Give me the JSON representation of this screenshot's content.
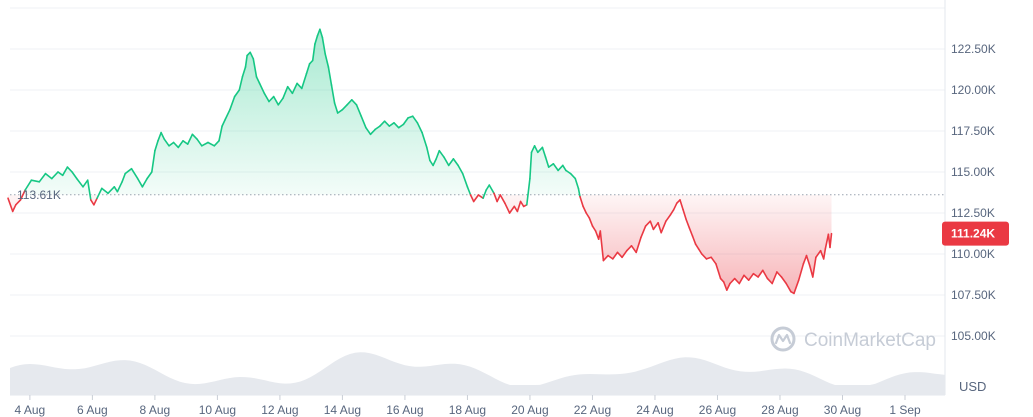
{
  "chart_data": {
    "type": "area",
    "currency": "USD",
    "watermark": "CoinMarketCap",
    "baseline": {
      "value": 113.61,
      "label": "113.61K"
    },
    "current": {
      "value": 111.24,
      "label": "111.24K"
    },
    "colors": {
      "up": "#16c784",
      "down": "#ea3943",
      "grid": "#eff2f5",
      "volume": "#e6e9ee",
      "axis_text": "#58667e"
    },
    "ylim": [
      103.0,
      125.5
    ],
    "y_ticks": [
      {
        "value": 122.5,
        "label": "122.50K"
      },
      {
        "value": 120.0,
        "label": "120.00K"
      },
      {
        "value": 117.5,
        "label": "117.50K"
      },
      {
        "value": 115.0,
        "label": "115.00K"
      },
      {
        "value": 112.5,
        "label": "112.50K"
      },
      {
        "value": 110.0,
        "label": "110.00K"
      },
      {
        "value": 107.5,
        "label": "107.50K"
      },
      {
        "value": 105.0,
        "label": "105.00K"
      }
    ],
    "xlim": [
      3.3,
      33.6
    ],
    "x_ticks": [
      {
        "value": 4,
        "label": "4 Aug"
      },
      {
        "value": 6,
        "label": "6 Aug"
      },
      {
        "value": 8,
        "label": "8 Aug"
      },
      {
        "value": 10,
        "label": "10 Aug"
      },
      {
        "value": 12,
        "label": "12 Aug"
      },
      {
        "value": 14,
        "label": "14 Aug"
      },
      {
        "value": 16,
        "label": "16 Aug"
      },
      {
        "value": 18,
        "label": "18 Aug"
      },
      {
        "value": 20,
        "label": "20 Aug"
      },
      {
        "value": 22,
        "label": "22 Aug"
      },
      {
        "value": 24,
        "label": "24 Aug"
      },
      {
        "value": 26,
        "label": "26 Aug"
      },
      {
        "value": 28,
        "label": "28 Aug"
      },
      {
        "value": 30,
        "label": "30 Aug"
      },
      {
        "value": 32,
        "label": "1 Sep"
      }
    ],
    "series": [
      {
        "values": [
          [
            3.3,
            113.4
          ],
          [
            3.45,
            112.6
          ],
          [
            3.55,
            113.0
          ],
          [
            3.7,
            113.3
          ],
          [
            3.85,
            113.9
          ],
          [
            4.05,
            114.5
          ],
          [
            4.3,
            114.4
          ],
          [
            4.5,
            114.9
          ],
          [
            4.7,
            114.6
          ],
          [
            4.9,
            115.0
          ],
          [
            5.05,
            114.8
          ],
          [
            5.2,
            115.3
          ],
          [
            5.35,
            115.0
          ],
          [
            5.5,
            114.6
          ],
          [
            5.7,
            114.1
          ],
          [
            5.85,
            114.5
          ],
          [
            5.95,
            113.3
          ],
          [
            6.05,
            113.0
          ],
          [
            6.15,
            113.4
          ],
          [
            6.3,
            114.0
          ],
          [
            6.5,
            113.7
          ],
          [
            6.7,
            114.1
          ],
          [
            6.8,
            113.8
          ],
          [
            6.95,
            114.4
          ],
          [
            7.05,
            114.9
          ],
          [
            7.25,
            115.2
          ],
          [
            7.45,
            114.6
          ],
          [
            7.6,
            114.1
          ],
          [
            7.75,
            114.6
          ],
          [
            7.9,
            115.0
          ],
          [
            8.0,
            116.3
          ],
          [
            8.1,
            116.9
          ],
          [
            8.2,
            117.4
          ],
          [
            8.3,
            117.0
          ],
          [
            8.45,
            116.6
          ],
          [
            8.6,
            116.8
          ],
          [
            8.75,
            116.5
          ],
          [
            8.9,
            116.9
          ],
          [
            9.05,
            116.7
          ],
          [
            9.2,
            117.3
          ],
          [
            9.35,
            117.0
          ],
          [
            9.5,
            116.6
          ],
          [
            9.7,
            116.8
          ],
          [
            9.9,
            116.6
          ],
          [
            10.05,
            116.9
          ],
          [
            10.15,
            117.8
          ],
          [
            10.25,
            118.2
          ],
          [
            10.4,
            118.8
          ],
          [
            10.55,
            119.6
          ],
          [
            10.7,
            120.0
          ],
          [
            10.8,
            120.8
          ],
          [
            10.9,
            121.4
          ],
          [
            10.95,
            122.1
          ],
          [
            11.05,
            122.3
          ],
          [
            11.15,
            121.9
          ],
          [
            11.25,
            120.8
          ],
          [
            11.35,
            120.4
          ],
          [
            11.5,
            119.8
          ],
          [
            11.65,
            119.3
          ],
          [
            11.8,
            119.6
          ],
          [
            11.95,
            119.1
          ],
          [
            12.1,
            119.5
          ],
          [
            12.25,
            120.2
          ],
          [
            12.4,
            119.8
          ],
          [
            12.55,
            120.4
          ],
          [
            12.7,
            120.1
          ],
          [
            12.85,
            121.0
          ],
          [
            12.95,
            121.6
          ],
          [
            13.05,
            121.8
          ],
          [
            13.12,
            122.8
          ],
          [
            13.2,
            123.3
          ],
          [
            13.28,
            123.7
          ],
          [
            13.36,
            123.2
          ],
          [
            13.45,
            122.2
          ],
          [
            13.55,
            121.4
          ],
          [
            13.65,
            120.3
          ],
          [
            13.75,
            119.2
          ],
          [
            13.85,
            118.6
          ],
          [
            14.0,
            118.8
          ],
          [
            14.15,
            119.1
          ],
          [
            14.3,
            119.4
          ],
          [
            14.45,
            119.1
          ],
          [
            14.6,
            118.4
          ],
          [
            14.75,
            117.7
          ],
          [
            14.9,
            117.3
          ],
          [
            15.05,
            117.6
          ],
          [
            15.2,
            117.8
          ],
          [
            15.35,
            118.1
          ],
          [
            15.5,
            117.8
          ],
          [
            15.65,
            118.0
          ],
          [
            15.8,
            117.7
          ],
          [
            15.95,
            117.9
          ],
          [
            16.1,
            118.3
          ],
          [
            16.25,
            118.4
          ],
          [
            16.4,
            118.0
          ],
          [
            16.55,
            117.4
          ],
          [
            16.7,
            116.5
          ],
          [
            16.8,
            115.7
          ],
          [
            16.9,
            115.4
          ],
          [
            17.0,
            115.8
          ],
          [
            17.1,
            116.3
          ],
          [
            17.25,
            115.9
          ],
          [
            17.4,
            115.4
          ],
          [
            17.55,
            115.8
          ],
          [
            17.7,
            115.4
          ],
          [
            17.85,
            114.9
          ],
          [
            18.0,
            114.1
          ],
          [
            18.1,
            113.6
          ]
        ]
      },
      {
        "values": [
          [
            18.1,
            113.6
          ],
          [
            18.2,
            113.2
          ],
          [
            18.35,
            113.6
          ],
          [
            18.5,
            113.4
          ],
          [
            18.6,
            113.9
          ],
          [
            18.7,
            114.2
          ],
          [
            18.85,
            113.7
          ],
          [
            18.95,
            113.2
          ],
          [
            19.05,
            113.6
          ],
          [
            19.2,
            113.1
          ],
          [
            19.35,
            112.5
          ],
          [
            19.5,
            112.9
          ],
          [
            19.6,
            112.6
          ],
          [
            19.7,
            113.2
          ],
          [
            19.8,
            112.9
          ],
          [
            19.9,
            113.0
          ],
          [
            20.0,
            114.6
          ],
          [
            20.05,
            116.2
          ],
          [
            20.15,
            116.6
          ],
          [
            20.25,
            116.2
          ],
          [
            20.4,
            116.5
          ],
          [
            20.5,
            115.9
          ],
          [
            20.6,
            115.3
          ],
          [
            20.75,
            115.5
          ],
          [
            20.9,
            115.1
          ],
          [
            21.05,
            115.4
          ],
          [
            21.15,
            115.1
          ],
          [
            21.3,
            114.9
          ],
          [
            21.45,
            114.6
          ],
          [
            21.55,
            114.0
          ],
          [
            21.6,
            113.5
          ],
          [
            21.7,
            112.9
          ],
          [
            21.8,
            112.5
          ],
          [
            21.9,
            112.2
          ],
          [
            22.0,
            111.7
          ],
          [
            22.1,
            111.4
          ],
          [
            22.2,
            110.9
          ],
          [
            22.25,
            111.4
          ],
          [
            22.35,
            109.6
          ],
          [
            22.5,
            109.9
          ],
          [
            22.65,
            109.7
          ],
          [
            22.8,
            110.1
          ],
          [
            22.95,
            109.8
          ],
          [
            23.1,
            110.2
          ],
          [
            23.25,
            110.5
          ],
          [
            23.4,
            110.1
          ],
          [
            23.55,
            111.0
          ],
          [
            23.7,
            111.7
          ],
          [
            23.85,
            112.0
          ],
          [
            23.95,
            111.5
          ],
          [
            24.1,
            111.9
          ],
          [
            24.2,
            111.3
          ],
          [
            24.35,
            112.0
          ],
          [
            24.5,
            112.4
          ],
          [
            24.6,
            112.7
          ],
          [
            24.7,
            113.1
          ],
          [
            24.8,
            113.3
          ],
          [
            24.9,
            112.7
          ],
          [
            25.0,
            112.1
          ],
          [
            25.1,
            111.6
          ],
          [
            25.2,
            111.1
          ],
          [
            25.3,
            110.6
          ],
          [
            25.4,
            110.3
          ],
          [
            25.5,
            110.0
          ],
          [
            25.65,
            109.7
          ],
          [
            25.8,
            109.8
          ],
          [
            25.95,
            109.4
          ],
          [
            26.1,
            108.5
          ],
          [
            26.2,
            108.3
          ],
          [
            26.3,
            107.8
          ],
          [
            26.4,
            108.2
          ],
          [
            26.55,
            108.5
          ],
          [
            26.7,
            108.2
          ],
          [
            26.85,
            108.7
          ],
          [
            27.0,
            108.4
          ],
          [
            27.15,
            108.8
          ],
          [
            27.3,
            108.6
          ],
          [
            27.45,
            109.0
          ],
          [
            27.6,
            108.5
          ],
          [
            27.75,
            108.2
          ],
          [
            27.9,
            108.9
          ],
          [
            28.05,
            108.6
          ],
          [
            28.2,
            108.2
          ],
          [
            28.35,
            107.7
          ],
          [
            28.45,
            107.6
          ],
          [
            28.6,
            108.4
          ],
          [
            28.75,
            109.4
          ],
          [
            28.85,
            109.9
          ],
          [
            28.95,
            109.3
          ],
          [
            29.05,
            108.6
          ],
          [
            29.15,
            109.8
          ],
          [
            29.3,
            110.2
          ],
          [
            29.4,
            109.7
          ],
          [
            29.45,
            110.3
          ],
          [
            29.55,
            111.2
          ],
          [
            29.6,
            110.4
          ],
          [
            29.65,
            111.24
          ]
        ]
      }
    ]
  }
}
